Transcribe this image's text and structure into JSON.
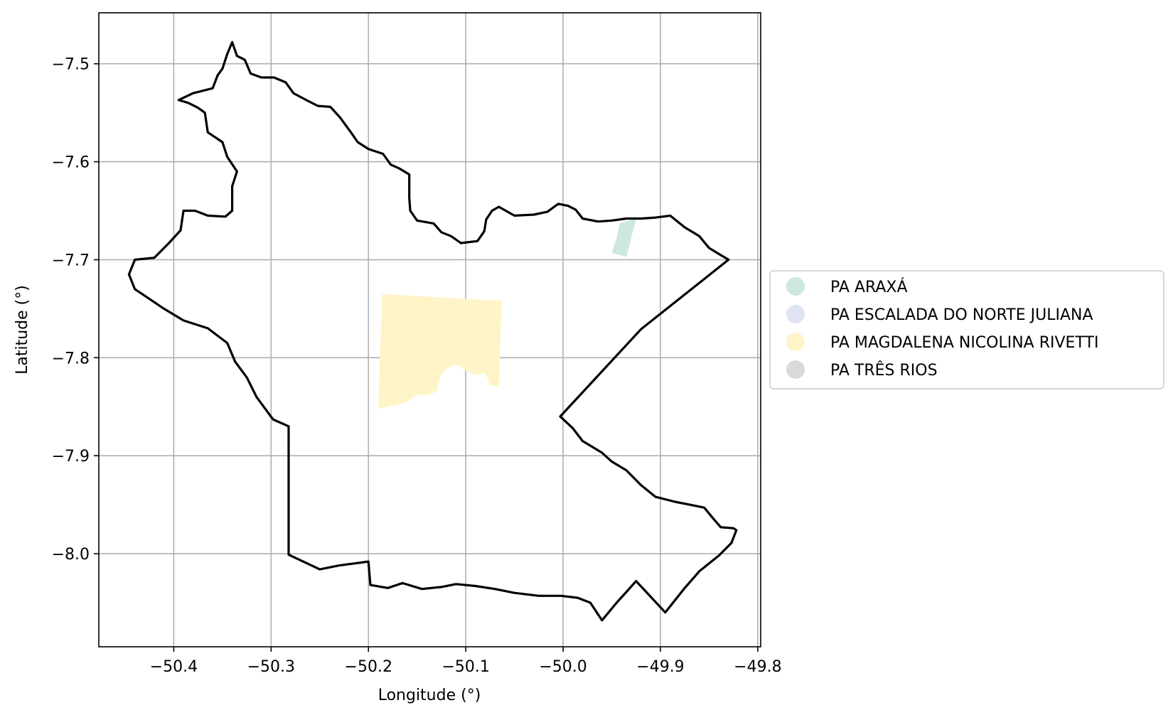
{
  "chart_data": {
    "type": "map",
    "xlabel": "Longitude (°)",
    "ylabel": "Latitude (°)",
    "xlim": [
      -50.477,
      -49.797
    ],
    "ylim": [
      -8.095,
      -7.448
    ],
    "grid": true,
    "x_ticks": [
      -50.4,
      -50.3,
      -50.2,
      -50.1,
      -50.0,
      -49.9,
      -49.8
    ],
    "x_tick_labels": [
      "−50.4",
      "−50.3",
      "−50.2",
      "−50.1",
      "−50.0",
      "−49.9",
      "−49.8"
    ],
    "y_ticks": [
      -7.5,
      -7.6,
      -7.7,
      -7.8,
      -7.9,
      -8.0
    ],
    "y_tick_labels": [
      "−7.5",
      "−7.6",
      "−7.7",
      "−7.8",
      "−7.9",
      "−8.0"
    ],
    "legend_position": "center-left outside plot",
    "boundary": {
      "color": "#000000",
      "coords": [
        [
          -50.34,
          -7.478
        ],
        [
          -50.335,
          -7.492
        ],
        [
          -50.327,
          -7.496
        ],
        [
          -50.321,
          -7.51
        ],
        [
          -50.31,
          -7.514
        ],
        [
          -50.297,
          -7.514
        ],
        [
          -50.285,
          -7.519
        ],
        [
          -50.277,
          -7.53
        ],
        [
          -50.262,
          -7.538
        ],
        [
          -50.252,
          -7.543
        ],
        [
          -50.239,
          -7.544
        ],
        [
          -50.229,
          -7.555
        ],
        [
          -50.218,
          -7.57
        ],
        [
          -50.211,
          -7.58
        ],
        [
          -50.2,
          -7.587
        ],
        [
          -50.185,
          -7.592
        ],
        [
          -50.177,
          -7.603
        ],
        [
          -50.168,
          -7.607
        ],
        [
          -50.158,
          -7.613
        ],
        [
          -50.158,
          -7.637
        ],
        [
          -50.157,
          -7.65
        ],
        [
          -50.15,
          -7.66
        ],
        [
          -50.133,
          -7.663
        ],
        [
          -50.125,
          -7.672
        ],
        [
          -50.115,
          -7.676
        ],
        [
          -50.105,
          -7.683
        ],
        [
          -50.088,
          -7.681
        ],
        [
          -50.081,
          -7.671
        ],
        [
          -50.079,
          -7.659
        ],
        [
          -50.073,
          -7.65
        ],
        [
          -50.066,
          -7.646
        ],
        [
          -50.05,
          -7.655
        ],
        [
          -50.03,
          -7.654
        ],
        [
          -50.016,
          -7.651
        ],
        [
          -50.005,
          -7.643
        ],
        [
          -49.995,
          -7.645
        ],
        [
          -49.987,
          -7.649
        ],
        [
          -49.98,
          -7.658
        ],
        [
          -49.964,
          -7.661
        ],
        [
          -49.95,
          -7.66
        ],
        [
          -49.935,
          -7.658
        ],
        [
          -49.92,
          -7.658
        ],
        [
          -49.905,
          -7.657
        ],
        [
          -49.89,
          -7.655
        ],
        [
          -49.875,
          -7.667
        ],
        [
          -49.86,
          -7.676
        ],
        [
          -49.85,
          -7.688
        ],
        [
          -49.84,
          -7.694
        ],
        [
          -49.83,
          -7.7
        ],
        [
          -49.92,
          -7.771
        ],
        [
          -50.003,
          -7.86
        ],
        [
          -49.99,
          -7.872
        ],
        [
          -49.98,
          -7.885
        ],
        [
          -49.96,
          -7.897
        ],
        [
          -49.95,
          -7.906
        ],
        [
          -49.935,
          -7.915
        ],
        [
          -49.92,
          -7.93
        ],
        [
          -49.905,
          -7.942
        ],
        [
          -49.885,
          -7.947
        ],
        [
          -49.87,
          -7.95
        ],
        [
          -49.855,
          -7.953
        ],
        [
          -49.845,
          -7.965
        ],
        [
          -49.838,
          -7.973
        ],
        [
          -49.825,
          -7.974
        ],
        [
          -49.822,
          -7.976
        ],
        [
          -49.827,
          -7.989
        ],
        [
          -49.84,
          -8.002
        ],
        [
          -49.86,
          -8.018
        ],
        [
          -49.875,
          -8.035
        ],
        [
          -49.895,
          -8.06
        ],
        [
          -49.925,
          -8.028
        ],
        [
          -49.945,
          -8.05
        ],
        [
          -49.96,
          -8.068
        ],
        [
          -49.972,
          -8.05
        ],
        [
          -49.985,
          -8.045
        ],
        [
          -50.002,
          -8.043
        ],
        [
          -50.025,
          -8.043
        ],
        [
          -50.05,
          -8.04
        ],
        [
          -50.07,
          -8.036
        ],
        [
          -50.09,
          -8.033
        ],
        [
          -50.11,
          -8.031
        ],
        [
          -50.125,
          -8.034
        ],
        [
          -50.145,
          -8.036
        ],
        [
          -50.165,
          -8.03
        ],
        [
          -50.18,
          -8.035
        ],
        [
          -50.198,
          -8.032
        ],
        [
          -50.2,
          -8.008
        ],
        [
          -50.23,
          -8.012
        ],
        [
          -50.25,
          -8.016
        ],
        [
          -50.282,
          -8.001
        ],
        [
          -50.282,
          -7.87
        ],
        [
          -50.298,
          -7.863
        ],
        [
          -50.315,
          -7.84
        ],
        [
          -50.325,
          -7.82
        ],
        [
          -50.337,
          -7.804
        ],
        [
          -50.345,
          -7.785
        ],
        [
          -50.365,
          -7.77
        ],
        [
          -50.39,
          -7.762
        ],
        [
          -50.41,
          -7.75
        ],
        [
          -50.425,
          -7.74
        ],
        [
          -50.44,
          -7.73
        ],
        [
          -50.446,
          -7.715
        ],
        [
          -50.44,
          -7.7
        ],
        [
          -50.42,
          -7.698
        ],
        [
          -50.405,
          -7.683
        ],
        [
          -50.393,
          -7.67
        ],
        [
          -50.39,
          -7.65
        ],
        [
          -50.378,
          -7.65
        ],
        [
          -50.365,
          -7.655
        ],
        [
          -50.347,
          -7.656
        ],
        [
          -50.34,
          -7.65
        ],
        [
          -50.34,
          -7.625
        ],
        [
          -50.335,
          -7.61
        ],
        [
          -50.345,
          -7.595
        ],
        [
          -50.35,
          -7.58
        ],
        [
          -50.365,
          -7.57
        ],
        [
          -50.368,
          -7.55
        ],
        [
          -50.375,
          -7.545
        ],
        [
          -50.385,
          -7.54
        ],
        [
          -50.395,
          -7.537
        ],
        [
          -50.38,
          -7.53
        ],
        [
          -50.36,
          -7.525
        ],
        [
          -50.355,
          -7.512
        ],
        [
          -50.35,
          -7.505
        ],
        [
          -50.345,
          -7.49
        ],
        [
          -50.34,
          -7.478
        ]
      ]
    },
    "areas": [
      {
        "name": "PA ARAXÁ",
        "color": "#cde8dc",
        "coords": [
          [
            -49.942,
            -7.663
          ],
          [
            -49.925,
            -7.658
          ],
          [
            -49.935,
            -7.697
          ],
          [
            -49.95,
            -7.693
          ],
          [
            -49.945,
            -7.678
          ]
        ]
      },
      {
        "name": "PA ESCALADA DO NORTE JULIANA",
        "color": "#dfe4f2",
        "coords": []
      },
      {
        "name": "PA MAGDALENA NICOLINA RIVETTI",
        "color": "#fff4c8",
        "coords": [
          [
            -50.186,
            -7.735
          ],
          [
            -50.063,
            -7.742
          ],
          [
            -50.066,
            -7.83
          ],
          [
            -50.075,
            -7.828
          ],
          [
            -50.08,
            -7.815
          ],
          [
            -50.09,
            -7.818
          ],
          [
            -50.1,
            -7.813
          ],
          [
            -50.11,
            -7.807
          ],
          [
            -50.118,
            -7.81
          ],
          [
            -50.126,
            -7.818
          ],
          [
            -50.13,
            -7.835
          ],
          [
            -50.14,
            -7.838
          ],
          [
            -50.15,
            -7.838
          ],
          [
            -50.16,
            -7.845
          ],
          [
            -50.17,
            -7.848
          ],
          [
            -50.18,
            -7.85
          ],
          [
            -50.19,
            -7.852
          ]
        ]
      },
      {
        "name": "PA TRÊS RIOS",
        "color": "#dadada",
        "coords": []
      }
    ]
  }
}
